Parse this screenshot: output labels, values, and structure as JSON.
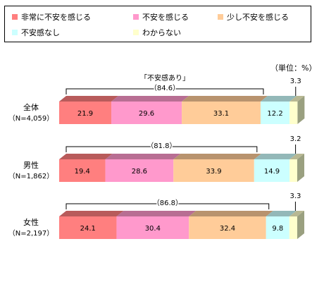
{
  "legend": [
    {
      "label": "非常に不安を感じる",
      "color": "#FF7F7F"
    },
    {
      "label": "不安を感じる",
      "color": "#FF99CC"
    },
    {
      "label": "少し不安を感じる",
      "color": "#FFCC99"
    },
    {
      "label": "不安感なし",
      "color": "#CCFFFF"
    },
    {
      "label": "わからない",
      "color": "#FFFFCC"
    }
  ],
  "unit": "（単位：%）",
  "bracket_caption": "「不安感あり」",
  "chart_data": {
    "type": "bar",
    "orientation": "horizontal",
    "stacked": true,
    "categories": [
      "全体",
      "男性",
      "女性"
    ],
    "category_n": [
      "（N=4,059）",
      "（N=1,862）",
      "（N=2,197）"
    ],
    "series": [
      {
        "name": "非常に不安を感じる",
        "color": "#FF7F7F",
        "values": [
          21.9,
          19.4,
          24.1
        ]
      },
      {
        "name": "不安を感じる",
        "color": "#FF99CC",
        "values": [
          29.6,
          28.6,
          30.4
        ]
      },
      {
        "name": "少し不安を感じる",
        "color": "#FFCC99",
        "values": [
          33.1,
          33.9,
          32.4
        ]
      },
      {
        "name": "不安感なし",
        "color": "#CCFFFF",
        "values": [
          12.2,
          14.9,
          9.8
        ]
      },
      {
        "name": "わからない",
        "color": "#FFFFCC",
        "values": [
          3.3,
          3.2,
          3.3
        ]
      }
    ],
    "anxiety_total": [
      "（84.6）",
      "（81.8）",
      "（86.8）"
    ],
    "xlim": [
      0,
      100
    ],
    "grid": false,
    "legend_position": "top"
  }
}
